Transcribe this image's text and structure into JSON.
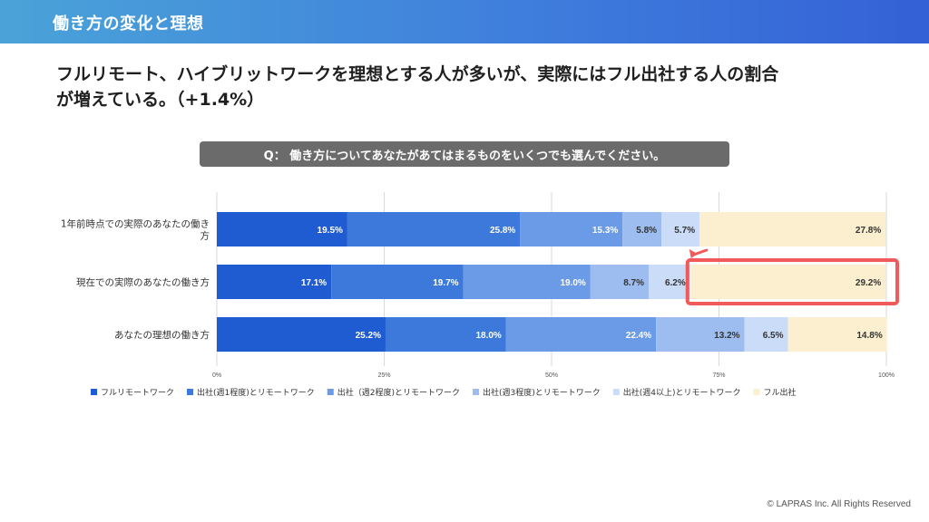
{
  "header": {
    "title": "働き方の変化と理想"
  },
  "headline": {
    "line1": "フルリモート、ハイブリットワークを理想とする人が多いが、実際にはフル出社する人の割合",
    "line2": "が増えている。（+1.4%）"
  },
  "question": "Q： 働き方についてあなたがあてはまるものをいくつでも選んでください。",
  "copyright": "© LAPRAS Inc. All Rights Reserved",
  "colors": {
    "series": [
      "#1f5bd1",
      "#3c79db",
      "#6b9ae6",
      "#9dbdf0",
      "#cadcf7",
      "#fbefd0"
    ],
    "highlight": "#f05a5a",
    "label_light": "#ffffff",
    "label_dark": "#333333"
  },
  "chart_data": {
    "type": "bar",
    "orientation": "horizontal-stacked-100",
    "categories": [
      [
        "1年前時点での実際のあなたの働き",
        "方"
      ],
      [
        "現在での実際のあなたの働き方"
      ],
      [
        "あなたの理想の働き方"
      ]
    ],
    "series": [
      {
        "name": "フルリモートワーク",
        "values": [
          19.5,
          17.1,
          25.2
        ]
      },
      {
        "name": "出社(週1程度)とリモートワーク",
        "values": [
          25.8,
          19.7,
          18.0
        ]
      },
      {
        "name": "出社（週2程度)とリモートワーク",
        "values": [
          15.3,
          19.0,
          22.4
        ]
      },
      {
        "name": "出社(週3程度)とリモートワーク",
        "values": [
          5.8,
          8.7,
          13.2
        ]
      },
      {
        "name": "出社(週4以上)とリモートワーク",
        "values": [
          5.7,
          6.2,
          6.5
        ]
      },
      {
        "name": "フル出社",
        "values": [
          27.8,
          29.2,
          14.8
        ]
      }
    ],
    "x_ticks": [
      "0%",
      "25%",
      "50%",
      "75%",
      "100%"
    ],
    "xlim": [
      0,
      100
    ],
    "grid": true,
    "legend_position": "bottom",
    "highlight": {
      "category_index": 1,
      "series_index": 5,
      "arrow": true
    }
  }
}
